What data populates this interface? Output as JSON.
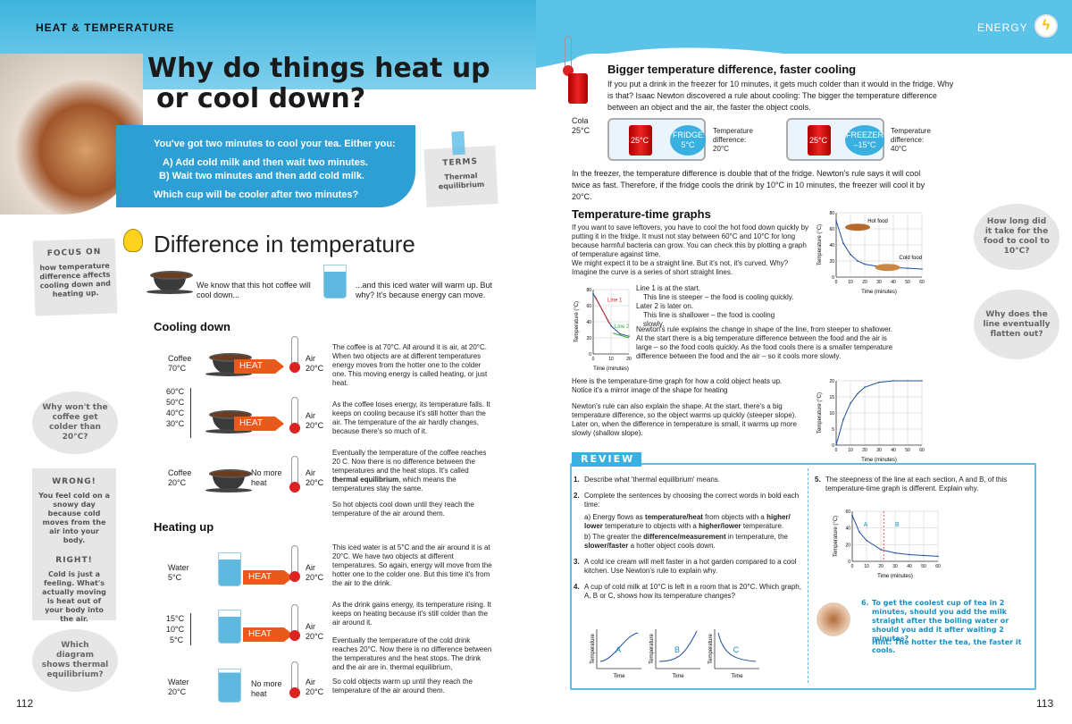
{
  "left": {
    "section": "HEAT & TEMPERATURE",
    "title": [
      "Why do things heat up",
      "or cool down?"
    ],
    "intro": [
      "You've got two minutes to cool your tea. Either you:",
      "A) Add cold milk and then wait two minutes.",
      "B) Wait two minutes and then add cold milk.",
      "Which cup will be cooler after two minutes?"
    ],
    "terms": {
      "head": "TERMS",
      "body": "Thermal equilibrium"
    },
    "focus": {
      "head": "FOCUS ON",
      "body": "how temperature difference affects cooling down and heating up."
    },
    "diff_title": "Difference in temperature",
    "diff_coffee": "We know that this hot coffee will cool down...",
    "diff_water": "...and this iced water will warm up. But why? It's because energy can move.",
    "cooling": "Cooling down",
    "heating": "Heating up",
    "wrong": {
      "head": "WRONG!",
      "body": "You feel cold on a snowy day because cold moves from the air into your body."
    },
    "right": {
      "head": "RIGHT!",
      "body": "Cold is just a feeling. What's actually moving is heat out of your body into the air."
    },
    "bubble1": "Why won't the coffee get colder than 20°C?",
    "bubble2": "Which diagram shows thermal equilibrium?",
    "c1": {
      "obj": "Coffee",
      "t": "70°C",
      "air": "Air",
      "at": "20°C",
      "heat": "HEAT",
      "text": "The coffee is at 70°C. All around it is air, at 20°C. When two objects are at different temperatures energy moves from the hotter one to the colder one. This moving energy is called heating, or just heat."
    },
    "scale": [
      "60°C",
      "50°C",
      "40°C",
      "30°C"
    ],
    "c2": {
      "air": "Air",
      "at": "20°C",
      "heat": "HEAT",
      "text": "As the coffee loses energy, its temperature falls. It keeps on cooling because it's still hotter than the air. The temperature of the air hardly changes, because there's so much of it."
    },
    "c3": {
      "obj": "Coffee",
      "t": "20°C",
      "nm": "No more heat",
      "air": "Air",
      "at": "20°C",
      "pre": "Eventually the temperature of the coffee reaches 20 C. Now there is no difference between the temperatures and the heat stops. It's called ",
      "bold": "thermal equilibrium",
      "post": ", which means the temperatures stay the same.",
      "text2": "So hot objects cool down until they reach the temperature of the air around them."
    },
    "h1": {
      "obj": "Water",
      "t": "5°C",
      "air": "Air",
      "at": "20°C",
      "heat": "HEAT",
      "text": "This iced water is at 5°C and the air around it is at 20°C. We have two objects at different temperatures. So again, energy will move from the hotter one to the colder one. But this time it's from the air to the drink."
    },
    "hscale": [
      "15°C",
      "10°C",
      "5°C"
    ],
    "h2": {
      "air": "Air",
      "at": "20°C",
      "heat": "HEAT",
      "text": "As the drink gains energy, its temperature rising. It keeps on heating because it's still colder than the air around it.",
      "text2": "Eventually the temperature of the cold drink reaches 20°C. Now there is no difference between the temperatures and the heat stops. The drink and the air are in. thermal equilibrium,"
    },
    "h3": {
      "obj": "Water",
      "t": "20°C",
      "nm": "No more heat",
      "air": "Air",
      "at": "20°C",
      "text": "So cold objects warm up until they reach the temperature of the air around them."
    },
    "page": "112"
  },
  "right": {
    "section": "ENERGY",
    "bigger": "Bigger temperature difference, faster cooling",
    "bigger_text": "If you put a drink in the freezer for 10 minutes, it gets much colder than it would in the fridge. Why is that? Isaac Newton discovered a rule about cooling: The bigger the temperature difference between an object and the air, the faster the object cools.",
    "cola": "Cola",
    "cola_t": "25°C",
    "fridge": {
      "can": "25°C",
      "l1": "FRIDGE",
      "l2": "5°C",
      "diff": "Temperature difference:",
      "dv": "20°C"
    },
    "freezer": {
      "can": "25°C",
      "l1": "FREEZER",
      "l2": "–15°C",
      "diff": "Temperature difference:",
      "dv": "40°C"
    },
    "freezer_text": "In the freezer, the temperature difference is double that of the fridge. Newton's rule says it will cool twice as fast. Therefore, if the fridge cools the drink by 10°C in 10 minutes, the freezer will cool it by 20°C.",
    "tt_title": "Temperature-time graphs",
    "tt_text": [
      "If you want to save leftovers, you have to cool the hot food down quickly by putting it in the fridge. It must not stay between 60°C and 10°C for long because harmful bacteria can grow. You can check this by plotting a graph of temperature against time.",
      "We might expect it to be a straight line. But it's not, it's curved. Why? Imagine the curve is a series of short straight lines."
    ],
    "lines": [
      "Line 1 is at the start.",
      "This line is steeper – the food is cooling quickly.",
      "Later 2 is later on.",
      "This line is shallower – the food is cooling slowly."
    ],
    "newton_text": "Newton's rule explains the change in shape of the line, from steeper to shallower. At the start there is a big temperature difference between the food and the air is large – so the food cools quickly. As the food cools there is a smaller temperature difference between the food and the air – so it cools more slowly.",
    "heatup_text": "Here is the temperature-time graph for how a cold object heats up. Notice it's a mirror image of the shape for heating",
    "heatup_text2": "Newton's rule can also explain the shape. At the start, there's a big temperature difference, so the object warms up quickly (steeper slope). Later on, when the difference in temperature is small, it warms up more slowly (shallow slope).",
    "bubble1": "How long did it take for the food to cool to 10°C?",
    "bubble2": "Why does the line eventually flatten out?",
    "review": "REVIEW",
    "q1": "Describe what 'thermal equilibrium' means.",
    "q2": "Complete the sentences by choosing the correct words in bold each time:",
    "q2a": [
      "a) Energy flows as ",
      "temperature/heat",
      " from objects with a ",
      "higher/ lower",
      " temperature to objects with a ",
      "higher/lower",
      " temperature."
    ],
    "q2b": [
      "b) The greater the ",
      "difference/measurement",
      " in temperature, the ",
      "slower/faster",
      " a hotter object cools down."
    ],
    "q3": "A cold ice cream will melt faster in a hot garden compared to a cool kitchen. Use Newton's rule to explain why.",
    "q4": "A cup of cold milk at 10°C is left in a room that is 20°C. Which graph, A, B or C, shows how its temperature changes?",
    "q5": "The steepness of the line at each section, A and B, of this temperature-time graph is different. Explain why.",
    "q6": "To get the coolest cup of tea in 2 minutes, should you add the milk straight after the boiling water or should you add it after waiting 2 minutes?",
    "hint": "Hint: The hotter the tea, the faster it cools.",
    "page": "113"
  },
  "chart_data": [
    {
      "type": "line",
      "x": [
        0,
        5,
        10,
        15,
        20,
        30,
        40,
        50,
        60
      ],
      "values": [
        70,
        42,
        28,
        20,
        16,
        13,
        12,
        11,
        10
      ],
      "ylabel": "Temperature (°C)",
      "xlabel": "Time (minutes)",
      "ylim": [
        0,
        80
      ],
      "xlim": [
        0,
        60
      ],
      "annotations": [
        "Hot food",
        "Cold food"
      ],
      "xticks": [
        0,
        10,
        20,
        30,
        40,
        50,
        60
      ],
      "yticks": [
        0,
        20,
        40,
        60,
        80
      ]
    },
    {
      "type": "line",
      "x": [
        0,
        5,
        10,
        15,
        20
      ],
      "values": [
        75,
        55,
        35,
        25,
        22
      ],
      "ylabel": "Temperature (°C)",
      "xlabel": "Time (minutes)",
      "ylim": [
        0,
        80
      ],
      "xlim": [
        0,
        20
      ],
      "series": [
        {
          "name": "Line 1"
        },
        {
          "name": "Line 2"
        }
      ],
      "xticks": [
        0,
        10,
        20
      ],
      "yticks": [
        0,
        20,
        40,
        60,
        80
      ]
    },
    {
      "type": "line",
      "x": [
        0,
        5,
        10,
        15,
        20,
        30,
        40,
        50,
        60
      ],
      "values": [
        0,
        8,
        13,
        16,
        18,
        19.5,
        20,
        20,
        20
      ],
      "ylabel": "Temperature (°C)",
      "xlabel": "Time (minutes)",
      "ylim": [
        0,
        20
      ],
      "xlim": [
        0,
        60
      ],
      "xticks": [
        0,
        10,
        20,
        30,
        40,
        50,
        60
      ],
      "yticks": [
        0,
        5,
        10,
        15,
        20
      ]
    },
    {
      "type": "line",
      "x": [
        0,
        5,
        10,
        20,
        30,
        40,
        50,
        60
      ],
      "values": [
        55,
        35,
        25,
        14,
        10,
        8,
        7,
        6
      ],
      "ylabel": "Temperature (°C)",
      "xlabel": "Time (minutes)",
      "ylim": [
        0,
        60
      ],
      "xlim": [
        0,
        60
      ],
      "annotations": [
        "A",
        "B"
      ],
      "xticks": [
        0,
        10,
        20,
        30,
        40,
        50,
        60
      ],
      "yticks": [
        0,
        20,
        40,
        60
      ]
    },
    {
      "type": "line",
      "panels": [
        "A",
        "B",
        "C"
      ],
      "ylabel": "Temperature",
      "xlabel": "Time"
    }
  ]
}
